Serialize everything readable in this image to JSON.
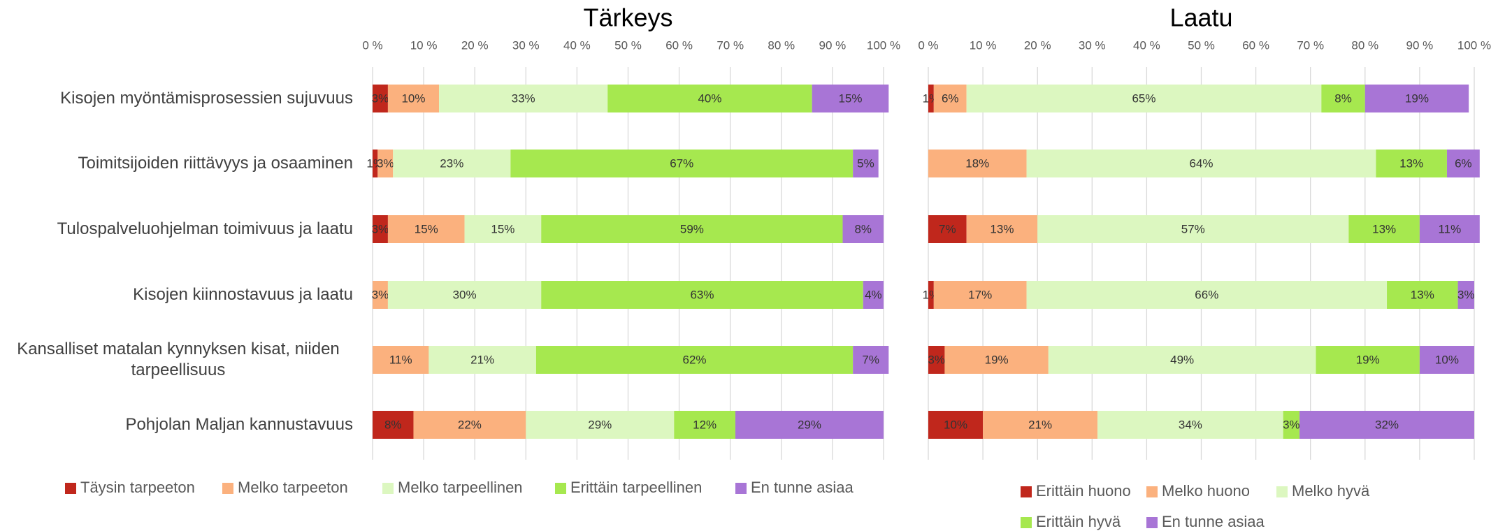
{
  "chart_data": [
    {
      "type": "bar",
      "orientation": "horizontal",
      "stacked": true,
      "title": "Tärkeys",
      "categories": [
        "Kisojen myöntämisprosessien sujuvuus",
        "Toimitsijoiden riittävyys ja osaaminen",
        "Tulospalveluohjelman toimivuus ja laatu",
        "Kisojen kiinnostavuus ja laatu",
        "Kansalliset matalan kynnyksen kisat, niiden tarpeellisuus",
        "Pohjolan Maljan kannustavuus"
      ],
      "xlim": [
        0,
        100
      ],
      "xticks": [
        {
          "value": 0,
          "label": "0 %"
        },
        {
          "value": 10,
          "label": "10 %"
        },
        {
          "value": 20,
          "label": "20 %"
        },
        {
          "value": 30,
          "label": "30 %"
        },
        {
          "value": 40,
          "label": "40 %"
        },
        {
          "value": 50,
          "label": "50 %"
        },
        {
          "value": 60,
          "label": "60 %"
        },
        {
          "value": 70,
          "label": "70 %"
        },
        {
          "value": 80,
          "label": "80 %"
        },
        {
          "value": 90,
          "label": "90 %"
        },
        {
          "value": 100,
          "label": "100 %"
        }
      ],
      "grid": true,
      "legend": "bottom",
      "series": [
        {
          "name": "Täysin tarpeeton",
          "color": "#c0271c",
          "values": [
            3,
            1,
            3,
            0,
            0,
            8
          ],
          "value_labels": [
            "3%",
            "1%",
            "3%",
            null,
            null,
            "8%"
          ]
        },
        {
          "name": "Melko tarpeeton",
          "color": "#fbb17e",
          "values": [
            10,
            3,
            15,
            3,
            11,
            22
          ],
          "value_labels": [
            "10%",
            "3%",
            "15%",
            "3%",
            "11%",
            "22%"
          ]
        },
        {
          "name": "Melko tarpeellinen",
          "color": "#dcf7c0",
          "values": [
            33,
            23,
            15,
            30,
            21,
            29
          ],
          "value_labels": [
            "33%",
            "23%",
            "15%",
            "30%",
            "21%",
            "29%"
          ]
        },
        {
          "name": "Erittäin tarpeellinen",
          "color": "#a6e84f",
          "values": [
            40,
            67,
            59,
            63,
            62,
            12
          ],
          "value_labels": [
            "40%",
            "67%",
            "59%",
            "63%",
            "62%",
            "12%"
          ]
        },
        {
          "name": "En tunne asiaa",
          "color": "#a875d6",
          "values": [
            15,
            5,
            8,
            4,
            7,
            29
          ],
          "value_labels": [
            "15%",
            "5%",
            "8%",
            "4%",
            "7%",
            "29%"
          ]
        }
      ]
    },
    {
      "type": "bar",
      "orientation": "horizontal",
      "stacked": true,
      "title": "Laatu",
      "xlim": [
        0,
        100
      ],
      "xticks": [
        {
          "value": 0,
          "label": "0 %"
        },
        {
          "value": 10,
          "label": "10 %"
        },
        {
          "value": 20,
          "label": "20 %"
        },
        {
          "value": 30,
          "label": "30 %"
        },
        {
          "value": 40,
          "label": "40 %"
        },
        {
          "value": 50,
          "label": "50 %"
        },
        {
          "value": 60,
          "label": "60 %"
        },
        {
          "value": 70,
          "label": "70 %"
        },
        {
          "value": 80,
          "label": "80 %"
        },
        {
          "value": 90,
          "label": "90 %"
        },
        {
          "value": 100,
          "label": "100 %"
        }
      ],
      "grid": true,
      "legend": "bottom",
      "series": [
        {
          "name": "Erittäin huono",
          "color": "#c0271c",
          "values": [
            1,
            0,
            7,
            1,
            3,
            10
          ],
          "value_labels": [
            "1%",
            null,
            "7%",
            "1%",
            "3%",
            "10%"
          ]
        },
        {
          "name": "Melko huono",
          "color": "#fbb17e",
          "values": [
            6,
            18,
            13,
            17,
            19,
            21
          ],
          "value_labels": [
            "6%",
            "18%",
            "13%",
            "17%",
            "19%",
            "21%"
          ]
        },
        {
          "name": "Melko hyvä",
          "color": "#dcf7c0",
          "values": [
            65,
            64,
            57,
            66,
            49,
            34
          ],
          "value_labels": [
            "65%",
            "64%",
            "57%",
            "66%",
            "49%",
            "34%"
          ]
        },
        {
          "name": "Erittäin hyvä",
          "color": "#a6e84f",
          "values": [
            8,
            13,
            13,
            13,
            19,
            3
          ],
          "value_labels": [
            "8%",
            "13%",
            "13%",
            "13%",
            "19%",
            "3%"
          ]
        },
        {
          "name": "En tunne asiaa",
          "color": "#a875d6",
          "values": [
            19,
            6,
            11,
            3,
            10,
            32
          ],
          "value_labels": [
            "19%",
            "6%",
            "11%",
            "3%",
            "10%",
            "32%"
          ]
        }
      ]
    }
  ]
}
